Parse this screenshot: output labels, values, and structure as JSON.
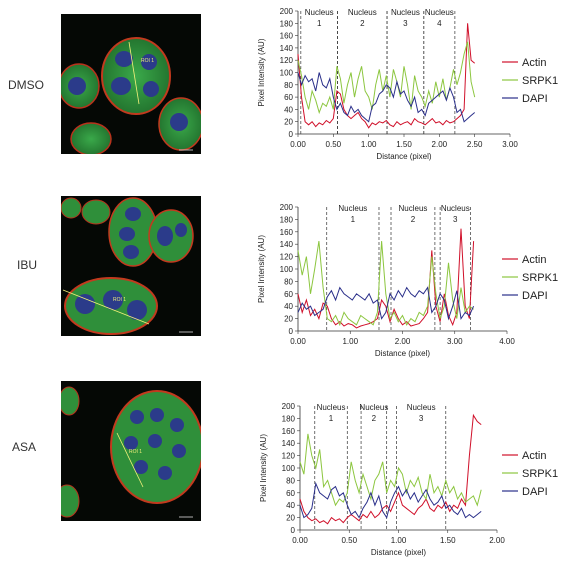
{
  "colors": {
    "actin": "#d0102a",
    "srpk1": "#8cc63f",
    "dapi": "#2a2f8a"
  },
  "common": {
    "ylabel": "Pixel Intensity (AU)",
    "xlabel": "Distance (pixel)",
    "legend": [
      "Actin",
      "SRPK1",
      "DAPI"
    ]
  },
  "rows": [
    {
      "label": "DMSO",
      "roi_label": "ROI 1"
    },
    {
      "label": "IBU",
      "roi_label": "ROI 1"
    },
    {
      "label": "ASA",
      "roi_label": "ROI 1"
    }
  ],
  "chart_data": [
    {
      "type": "line",
      "title": "",
      "xlabel": "Distance (pixel)",
      "ylabel": "Pixel Intensity (AU)",
      "xlim": [
        0,
        3.0
      ],
      "ylim": [
        0,
        200
      ],
      "xticks": [
        "0.00",
        "0.50",
        "1.00",
        "1.50",
        "2.00",
        "2.50",
        "3.00"
      ],
      "xtick_values": [
        0,
        0.5,
        1.0,
        1.5,
        2.0,
        2.5,
        3.0
      ],
      "yticks": [
        0,
        20,
        40,
        60,
        80,
        100,
        120,
        140,
        160,
        180,
        200
      ],
      "nuclei": [
        {
          "label": "Nucleus",
          "num": "1",
          "start": 0.04,
          "end": 0.56
        },
        {
          "label": "Nucleus",
          "num": "2",
          "start": 0.56,
          "end": 1.26
        },
        {
          "label": "Nucleus",
          "num": "3",
          "start": 1.26,
          "end": 1.78
        },
        {
          "label": "Nucleus",
          "num": "4",
          "start": 1.78,
          "end": 2.22
        }
      ],
      "series": [
        {
          "name": "Actin",
          "x": [
            0.0,
            0.05,
            0.1,
            0.15,
            0.2,
            0.25,
            0.3,
            0.35,
            0.4,
            0.45,
            0.5,
            0.55,
            0.6,
            0.65,
            0.7,
            0.75,
            0.8,
            0.85,
            0.9,
            0.95,
            1.0,
            1.05,
            1.1,
            1.15,
            1.2,
            1.25,
            1.3,
            1.35,
            1.4,
            1.45,
            1.5,
            1.55,
            1.6,
            1.65,
            1.7,
            1.75,
            1.8,
            1.85,
            1.9,
            1.95,
            2.0,
            2.05,
            2.1,
            2.15,
            2.2,
            2.25,
            2.3,
            2.35,
            2.4,
            2.45,
            2.5
          ],
          "y": [
            130,
            60,
            20,
            15,
            20,
            12,
            18,
            15,
            22,
            18,
            25,
            70,
            65,
            40,
            30,
            25,
            30,
            35,
            25,
            20,
            10,
            18,
            15,
            20,
            18,
            22,
            15,
            12,
            20,
            15,
            18,
            20,
            15,
            25,
            20,
            18,
            15,
            20,
            25,
            18,
            20,
            15,
            22,
            18,
            20,
            25,
            30,
            40,
            180,
            120,
            115
          ]
        },
        {
          "name": "SRPK1",
          "x": [
            0.0,
            0.05,
            0.1,
            0.15,
            0.2,
            0.25,
            0.3,
            0.35,
            0.4,
            0.45,
            0.5,
            0.55,
            0.6,
            0.65,
            0.7,
            0.75,
            0.8,
            0.85,
            0.9,
            0.95,
            1.0,
            1.05,
            1.1,
            1.15,
            1.2,
            1.25,
            1.3,
            1.35,
            1.4,
            1.45,
            1.5,
            1.55,
            1.6,
            1.65,
            1.7,
            1.75,
            1.8,
            1.85,
            1.9,
            1.95,
            2.0,
            2.05,
            2.1,
            2.15,
            2.2,
            2.25,
            2.3,
            2.35,
            2.4,
            2.45,
            2.5
          ],
          "y": [
            120,
            95,
            60,
            40,
            70,
            55,
            35,
            50,
            45,
            60,
            40,
            110,
            90,
            50,
            80,
            100,
            60,
            90,
            110,
            70,
            60,
            40,
            80,
            105,
            70,
            95,
            60,
            105,
            85,
            60,
            110,
            80,
            40,
            95,
            70,
            60,
            45,
            70,
            50,
            85,
            60,
            90,
            55,
            75,
            105,
            80,
            100,
            130,
            150,
            85,
            60
          ]
        },
        {
          "name": "DAPI",
          "x": [
            0.0,
            0.05,
            0.1,
            0.15,
            0.2,
            0.25,
            0.3,
            0.35,
            0.4,
            0.45,
            0.5,
            0.55,
            0.6,
            0.65,
            0.7,
            0.75,
            0.8,
            0.85,
            0.9,
            0.95,
            1.0,
            1.05,
            1.1,
            1.15,
            1.2,
            1.25,
            1.3,
            1.35,
            1.4,
            1.45,
            1.5,
            1.55,
            1.6,
            1.65,
            1.7,
            1.75,
            1.8,
            1.85,
            1.9,
            1.95,
            2.0,
            2.05,
            2.1,
            2.15,
            2.2,
            2.25,
            2.3,
            2.35,
            2.4,
            2.45,
            2.5
          ],
          "y": [
            100,
            80,
            95,
            85,
            90,
            70,
            100,
            80,
            75,
            90,
            60,
            40,
            50,
            35,
            30,
            45,
            35,
            40,
            30,
            25,
            20,
            45,
            50,
            65,
            70,
            80,
            75,
            60,
            85,
            65,
            70,
            55,
            45,
            60,
            35,
            40,
            30,
            50,
            55,
            60,
            65,
            70,
            55,
            75,
            60,
            35,
            40,
            20,
            25,
            30,
            35
          ]
        }
      ]
    },
    {
      "type": "line",
      "title": "",
      "xlabel": "Distance (pixel)",
      "ylabel": "Pixel Intensity (AU)",
      "xlim": [
        0,
        4.0
      ],
      "ylim": [
        0,
        200
      ],
      "xticks": [
        "0.00",
        "1.00",
        "2.00",
        "3.00",
        "4.00"
      ],
      "xtick_values": [
        0,
        1.0,
        2.0,
        3.0,
        4.0
      ],
      "yticks": [
        0,
        20,
        40,
        60,
        80,
        100,
        120,
        140,
        160,
        180,
        200
      ],
      "nuclei": [
        {
          "label": "Nucleus",
          "num": "1",
          "start": 0.55,
          "end": 1.55
        },
        {
          "label": "Nucleus",
          "num": "2",
          "start": 1.78,
          "end": 2.62
        },
        {
          "label": "Nucleus",
          "num": "3",
          "start": 2.72,
          "end": 3.3
        }
      ],
      "series": [
        {
          "name": "Actin",
          "x": [
            0.0,
            0.08,
            0.16,
            0.24,
            0.32,
            0.4,
            0.48,
            0.56,
            0.64,
            0.72,
            0.8,
            0.88,
            0.96,
            1.04,
            1.12,
            1.2,
            1.28,
            1.36,
            1.44,
            1.52,
            1.6,
            1.68,
            1.76,
            1.84,
            1.92,
            2.0,
            2.08,
            2.16,
            2.24,
            2.32,
            2.4,
            2.48,
            2.56,
            2.64,
            2.72,
            2.8,
            2.88,
            2.96,
            3.04,
            3.12,
            3.2,
            3.28,
            3.36
          ],
          "y": [
            60,
            30,
            50,
            25,
            35,
            20,
            45,
            40,
            20,
            10,
            15,
            8,
            12,
            10,
            5,
            8,
            10,
            12,
            15,
            20,
            50,
            40,
            15,
            35,
            20,
            10,
            15,
            8,
            10,
            12,
            20,
            30,
            130,
            40,
            15,
            60,
            25,
            10,
            30,
            165,
            40,
            20,
            145
          ]
        },
        {
          "name": "SRPK1",
          "x": [
            0.0,
            0.08,
            0.16,
            0.24,
            0.32,
            0.4,
            0.48,
            0.56,
            0.64,
            0.72,
            0.8,
            0.88,
            0.96,
            1.04,
            1.12,
            1.2,
            1.28,
            1.36,
            1.44,
            1.52,
            1.6,
            1.68,
            1.76,
            1.84,
            1.92,
            2.0,
            2.08,
            2.16,
            2.24,
            2.32,
            2.4,
            2.48,
            2.56,
            2.64,
            2.72,
            2.8,
            2.88,
            2.96,
            3.04,
            3.12,
            3.2,
            3.28,
            3.36
          ],
          "y": [
            130,
            90,
            120,
            60,
            100,
            145,
            70,
            20,
            15,
            25,
            10,
            30,
            20,
            15,
            10,
            25,
            20,
            15,
            10,
            30,
            145,
            60,
            20,
            30,
            15,
            25,
            10,
            20,
            15,
            30,
            25,
            40,
            120,
            60,
            20,
            40,
            110,
            50,
            20,
            70,
            30,
            40,
            35
          ]
        },
        {
          "name": "DAPI",
          "x": [
            0.0,
            0.08,
            0.16,
            0.24,
            0.32,
            0.4,
            0.48,
            0.56,
            0.64,
            0.72,
            0.8,
            0.88,
            0.96,
            1.04,
            1.12,
            1.2,
            1.28,
            1.36,
            1.44,
            1.52,
            1.6,
            1.68,
            1.76,
            1.84,
            1.92,
            2.0,
            2.08,
            2.16,
            2.24,
            2.32,
            2.4,
            2.48,
            2.56,
            2.64,
            2.72,
            2.8,
            2.88,
            2.96,
            3.04,
            3.12,
            3.2,
            3.28,
            3.36
          ],
          "y": [
            30,
            45,
            35,
            40,
            25,
            30,
            35,
            55,
            65,
            50,
            70,
            60,
            55,
            50,
            60,
            55,
            50,
            60,
            45,
            50,
            20,
            30,
            60,
            50,
            65,
            55,
            70,
            60,
            55,
            65,
            60,
            70,
            30,
            40,
            60,
            50,
            20,
            40,
            65,
            20,
            30,
            25,
            40
          ]
        }
      ]
    },
    {
      "type": "line",
      "title": "",
      "xlabel": "Distance (pixel)",
      "ylabel": "Pixel Intensity (AU)",
      "xlim": [
        0,
        2.0
      ],
      "ylim": [
        0,
        200
      ],
      "xticks": [
        "0.00",
        "0.50",
        "1.00",
        "1.50",
        "2.00"
      ],
      "xtick_values": [
        0,
        0.5,
        1.0,
        1.5,
        2.0
      ],
      "yticks": [
        0,
        20,
        40,
        60,
        80,
        100,
        120,
        140,
        160,
        180,
        200
      ],
      "nuclei": [
        {
          "label": "Nucleus",
          "num": "1",
          "start": 0.15,
          "end": 0.48
        },
        {
          "label": "Nucleus",
          "num": "2",
          "start": 0.62,
          "end": 0.88
        },
        {
          "label": "Nucleus",
          "num": "3",
          "start": 0.98,
          "end": 1.48
        }
      ],
      "series": [
        {
          "name": "Actin",
          "x": [
            0.0,
            0.04,
            0.08,
            0.12,
            0.16,
            0.2,
            0.24,
            0.28,
            0.32,
            0.36,
            0.4,
            0.44,
            0.48,
            0.52,
            0.56,
            0.6,
            0.64,
            0.68,
            0.72,
            0.76,
            0.8,
            0.84,
            0.88,
            0.92,
            0.96,
            1.0,
            1.04,
            1.08,
            1.12,
            1.16,
            1.2,
            1.24,
            1.28,
            1.32,
            1.36,
            1.4,
            1.44,
            1.48,
            1.52,
            1.56,
            1.6,
            1.64,
            1.68,
            1.72,
            1.76,
            1.8,
            1.84
          ],
          "y": [
            50,
            30,
            20,
            15,
            18,
            12,
            15,
            10,
            20,
            15,
            18,
            12,
            20,
            25,
            20,
            15,
            25,
            20,
            30,
            20,
            25,
            35,
            40,
            30,
            45,
            60,
            40,
            35,
            30,
            25,
            35,
            40,
            50,
            35,
            30,
            40,
            35,
            45,
            30,
            40,
            35,
            50,
            40,
            120,
            185,
            175,
            170
          ]
        },
        {
          "name": "SRPK1",
          "x": [
            0.0,
            0.04,
            0.08,
            0.12,
            0.16,
            0.2,
            0.24,
            0.28,
            0.32,
            0.36,
            0.4,
            0.44,
            0.48,
            0.52,
            0.56,
            0.6,
            0.64,
            0.68,
            0.72,
            0.76,
            0.8,
            0.84,
            0.88,
            0.92,
            0.96,
            1.0,
            1.04,
            1.08,
            1.12,
            1.16,
            1.2,
            1.24,
            1.28,
            1.32,
            1.36,
            1.4,
            1.44,
            1.48,
            1.52,
            1.56,
            1.6,
            1.64,
            1.68,
            1.72,
            1.76,
            1.8,
            1.84
          ],
          "y": [
            110,
            90,
            155,
            120,
            100,
            130,
            70,
            80,
            60,
            40,
            50,
            45,
            60,
            110,
            80,
            60,
            90,
            70,
            50,
            80,
            90,
            110,
            60,
            80,
            70,
            100,
            90,
            60,
            80,
            70,
            85,
            60,
            50,
            90,
            60,
            70,
            55,
            80,
            60,
            70,
            50,
            60,
            45,
            50,
            55,
            40,
            65
          ]
        },
        {
          "name": "DAPI",
          "x": [
            0.0,
            0.04,
            0.08,
            0.12,
            0.16,
            0.2,
            0.24,
            0.28,
            0.32,
            0.36,
            0.4,
            0.44,
            0.48,
            0.52,
            0.56,
            0.6,
            0.64,
            0.68,
            0.72,
            0.76,
            0.8,
            0.84,
            0.88,
            0.92,
            0.96,
            1.0,
            1.04,
            1.08,
            1.12,
            1.16,
            1.2,
            1.24,
            1.28,
            1.32,
            1.36,
            1.4,
            1.44,
            1.48,
            1.52,
            1.56,
            1.6,
            1.64,
            1.68,
            1.72,
            1.76,
            1.8,
            1.84
          ],
          "y": [
            40,
            20,
            25,
            35,
            75,
            60,
            55,
            50,
            65,
            70,
            55,
            60,
            40,
            25,
            30,
            20,
            35,
            45,
            60,
            40,
            55,
            30,
            20,
            45,
            60,
            70,
            55,
            65,
            50,
            60,
            45,
            55,
            65,
            50,
            40,
            45,
            55,
            35,
            40,
            30,
            25,
            35,
            20,
            25,
            20,
            25,
            30
          ]
        }
      ]
    }
  ]
}
